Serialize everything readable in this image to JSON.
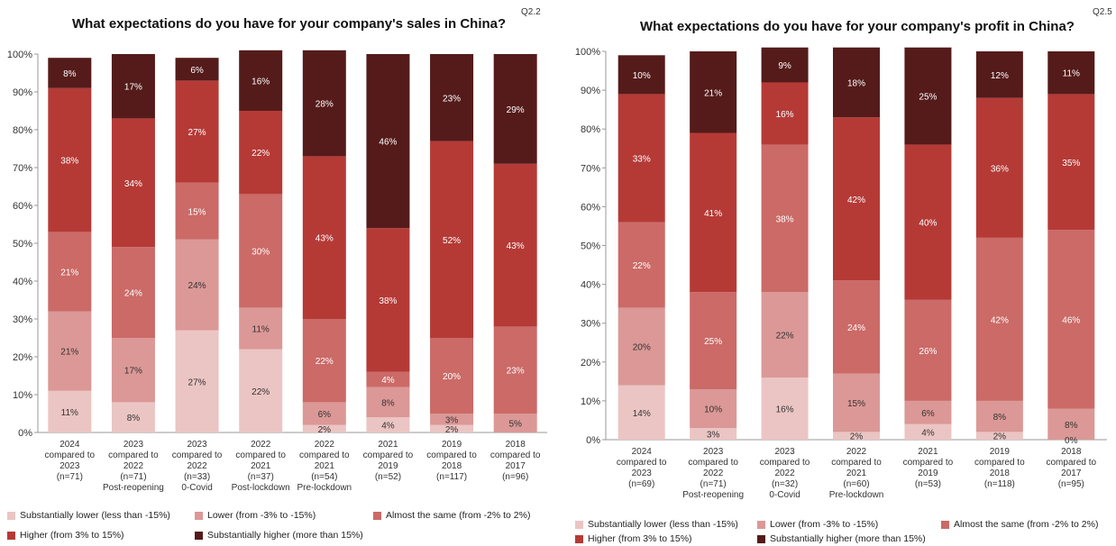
{
  "colors": {
    "substantially_lower": "#ebc5c3",
    "lower": "#db9896",
    "almost_same": "#cb6a67",
    "higher": "#b53a36",
    "substantially_higher": "#541b1a"
  },
  "legend": [
    {
      "key": "substantially_lower",
      "label": "Substantially lower (less than -15%)"
    },
    {
      "key": "lower",
      "label": "Lower (from -3% to -15%)"
    },
    {
      "key": "almost_same",
      "label": "Almost the same (from -2% to 2%)"
    },
    {
      "key": "higher",
      "label": "Higher (from 3% to 15%)"
    },
    {
      "key": "substantially_higher",
      "label": "Substantially higher (more than 15%)"
    }
  ],
  "yticks": [
    "0%",
    "10%",
    "20%",
    "30%",
    "40%",
    "50%",
    "60%",
    "70%",
    "80%",
    "90%",
    "100%"
  ],
  "chart_data": [
    {
      "type": "bar",
      "stacked": true,
      "title": "What expectations do you have for your company's sales in China?",
      "code": "Q2.2",
      "ylim": [
        0,
        100
      ],
      "categories": [
        [
          "2024",
          "compared to",
          "2023",
          "(n=71)"
        ],
        [
          "2023",
          "compared to",
          "2022",
          "(n=71)",
          "Post-reopening"
        ],
        [
          "2023",
          "compared to",
          "2022",
          "(n=33)",
          "0-Covid"
        ],
        [
          "2022",
          "compared to",
          "2021",
          "(n=37)",
          "Post-lockdown"
        ],
        [
          "2022",
          "compared to",
          "2021",
          "(n=54)",
          "Pre-lockdown"
        ],
        [
          "2021",
          "compared to",
          "2019",
          "(n=52)"
        ],
        [
          "2019",
          "compared to",
          "2018",
          "(n=117)"
        ],
        [
          "2018",
          "compared to",
          "2017",
          "(n=96)"
        ]
      ],
      "series": [
        {
          "key": "substantially_lower",
          "values": [
            11,
            8,
            27,
            22,
            2,
            4,
            2,
            0
          ],
          "labels": [
            "11%",
            "8%",
            "27%",
            "22%",
            "2%",
            "4%",
            "2%",
            ""
          ]
        },
        {
          "key": "lower",
          "values": [
            21,
            17,
            24,
            11,
            6,
            8,
            3,
            5
          ],
          "labels": [
            "21%",
            "17%",
            "24%",
            "11%",
            "6%",
            "8%",
            "3%",
            "5%"
          ]
        },
        {
          "key": "almost_same",
          "values": [
            21,
            24,
            15,
            30,
            22,
            4,
            20,
            23
          ],
          "labels": [
            "21%",
            "24%",
            "15%",
            "30%",
            "22%",
            "4%",
            "20%",
            "23%"
          ]
        },
        {
          "key": "higher",
          "values": [
            38,
            34,
            27,
            22,
            43,
            38,
            52,
            43
          ],
          "labels": [
            "38%",
            "34%",
            "27%",
            "22%",
            "43%",
            "38%",
            "52%",
            "43%"
          ]
        },
        {
          "key": "substantially_higher",
          "values": [
            8,
            17,
            6,
            16,
            28,
            46,
            23,
            29
          ],
          "labels": [
            "8%",
            "17%",
            "6%",
            "16%",
            "28%",
            "46%",
            "23%",
            "29%"
          ]
        }
      ]
    },
    {
      "type": "bar",
      "stacked": true,
      "title": "What expectations do you have for your company's profit in China?",
      "code": "Q2.5",
      "ylim": [
        0,
        100
      ],
      "categories": [
        [
          "2024",
          "compared to",
          "2023",
          "(n=69)"
        ],
        [
          "2023",
          "compared to",
          "2022",
          "(n=71)",
          "Post-reopening"
        ],
        [
          "2023",
          "compared to",
          "2022",
          "(n=32)",
          "0-Covid"
        ],
        [
          "2022",
          "compared to",
          "2021",
          "(n=60)",
          "Pre-lockdown"
        ],
        [
          "2021",
          "compared to",
          "2019",
          "(n=53)"
        ],
        [
          "2019",
          "compared to",
          "2018",
          "(n=118)"
        ],
        [
          "2018",
          "compared to",
          "2017",
          "(n=95)"
        ]
      ],
      "series": [
        {
          "key": "substantially_lower",
          "values": [
            14,
            3,
            16,
            2,
            4,
            2,
            0
          ],
          "labels": [
            "14%",
            "3%",
            "16%",
            "2%",
            "4%",
            "2%",
            "0%"
          ]
        },
        {
          "key": "lower",
          "values": [
            20,
            10,
            22,
            15,
            6,
            8,
            8
          ],
          "labels": [
            "20%",
            "10%",
            "22%",
            "15%",
            "6%",
            "8%",
            "8%"
          ]
        },
        {
          "key": "almost_same",
          "values": [
            22,
            25,
            38,
            24,
            26,
            42,
            46
          ],
          "labels": [
            "22%",
            "25%",
            "38%",
            "24%",
            "26%",
            "42%",
            "46%"
          ]
        },
        {
          "key": "higher",
          "values": [
            33,
            41,
            16,
            42,
            40,
            36,
            35
          ],
          "labels": [
            "33%",
            "41%",
            "16%",
            "42%",
            "40%",
            "36%",
            "35%"
          ]
        },
        {
          "key": "substantially_higher",
          "values": [
            10,
            21,
            9,
            18,
            25,
            12,
            11
          ],
          "labels": [
            "10%",
            "21%",
            "9%",
            "18%",
            "25%",
            "12%",
            "11%"
          ]
        }
      ]
    }
  ]
}
